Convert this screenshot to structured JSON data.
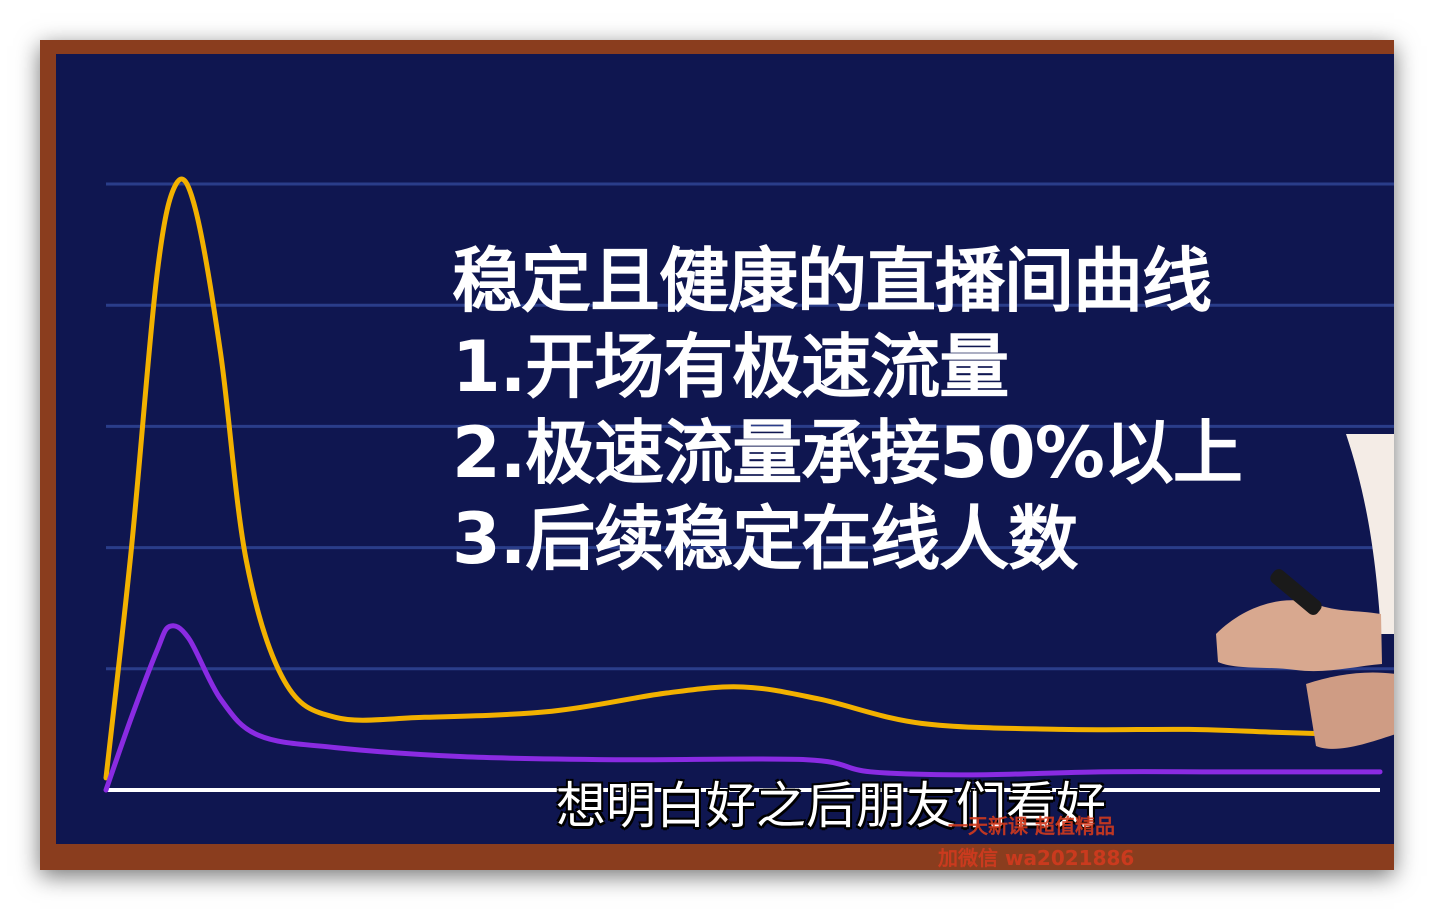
{
  "slide": {
    "lines": [
      "稳定且健康的直播间曲线",
      "1.开场有极速流量",
      "2.极速流量承接50%以上",
      "3.后续稳定在线人数"
    ]
  },
  "subtitle": "想明白好之后朋友们看好",
  "watermark": {
    "line1": "一天新课 超值精品",
    "line2": "加微信 wa2021886"
  },
  "colors": {
    "board": "#0f1650",
    "frame": "#8a3d1e",
    "gridline": "#2a3d8a",
    "series_orange": "#f2b100",
    "series_purple": "#8a2be2",
    "axis": "#ffffff"
  },
  "chart_data": {
    "type": "line",
    "title": "",
    "xlabel": "",
    "ylabel": "",
    "grid": true,
    "ylim": [
      0,
      100
    ],
    "xlim": [
      0,
      100
    ],
    "series": [
      {
        "color": "#f2b100",
        "points": [
          [
            0,
            2
          ],
          [
            2,
            40
          ],
          [
            4,
            85
          ],
          [
            5.5,
            100
          ],
          [
            7,
            96
          ],
          [
            9,
            72
          ],
          [
            11,
            38
          ],
          [
            14,
            18
          ],
          [
            18,
            12
          ],
          [
            25,
            12
          ],
          [
            35,
            13
          ],
          [
            44,
            16
          ],
          [
            50,
            17
          ],
          [
            56,
            15
          ],
          [
            64,
            11
          ],
          [
            75,
            10
          ],
          [
            85,
            10
          ],
          [
            92,
            9.5
          ],
          [
            100,
            9
          ]
        ]
      },
      {
        "color": "#8a2be2",
        "points": [
          [
            0,
            0
          ],
          [
            2,
            12
          ],
          [
            4,
            23
          ],
          [
            5,
            27
          ],
          [
            6.5,
            25
          ],
          [
            9,
            15
          ],
          [
            12,
            9
          ],
          [
            18,
            7
          ],
          [
            28,
            5.5
          ],
          [
            40,
            5
          ],
          [
            55,
            5
          ],
          [
            60,
            3
          ],
          [
            68,
            2.5
          ],
          [
            78,
            3
          ],
          [
            88,
            3
          ],
          [
            100,
            3
          ]
        ]
      }
    ]
  }
}
